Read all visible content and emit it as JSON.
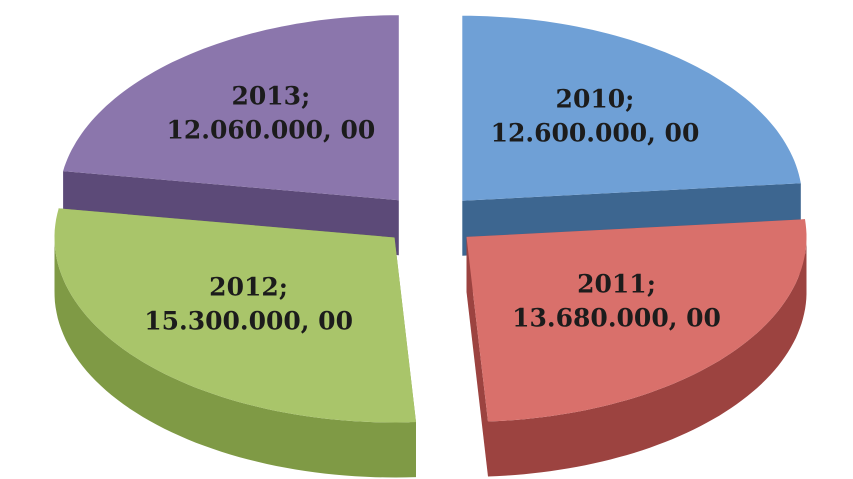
{
  "chart_data": {
    "type": "pie3d",
    "categories": [
      "2010",
      "2011",
      "2012",
      "2013"
    ],
    "values": [
      12600000,
      13680000,
      15300000,
      12060000
    ],
    "value_labels": [
      "12.600.000, 00",
      "13.680.000, 00",
      "15.300.000, 00",
      "12.060.000, 00"
    ],
    "label_separator": ";",
    "colors": [
      "#6fa0d6",
      "#d9706b",
      "#a9c56a",
      "#8b76ac"
    ],
    "side_colors": [
      "#3d6690",
      "#9c4340",
      "#7f9a45",
      "#5c4a78"
    ],
    "exploded": true
  }
}
